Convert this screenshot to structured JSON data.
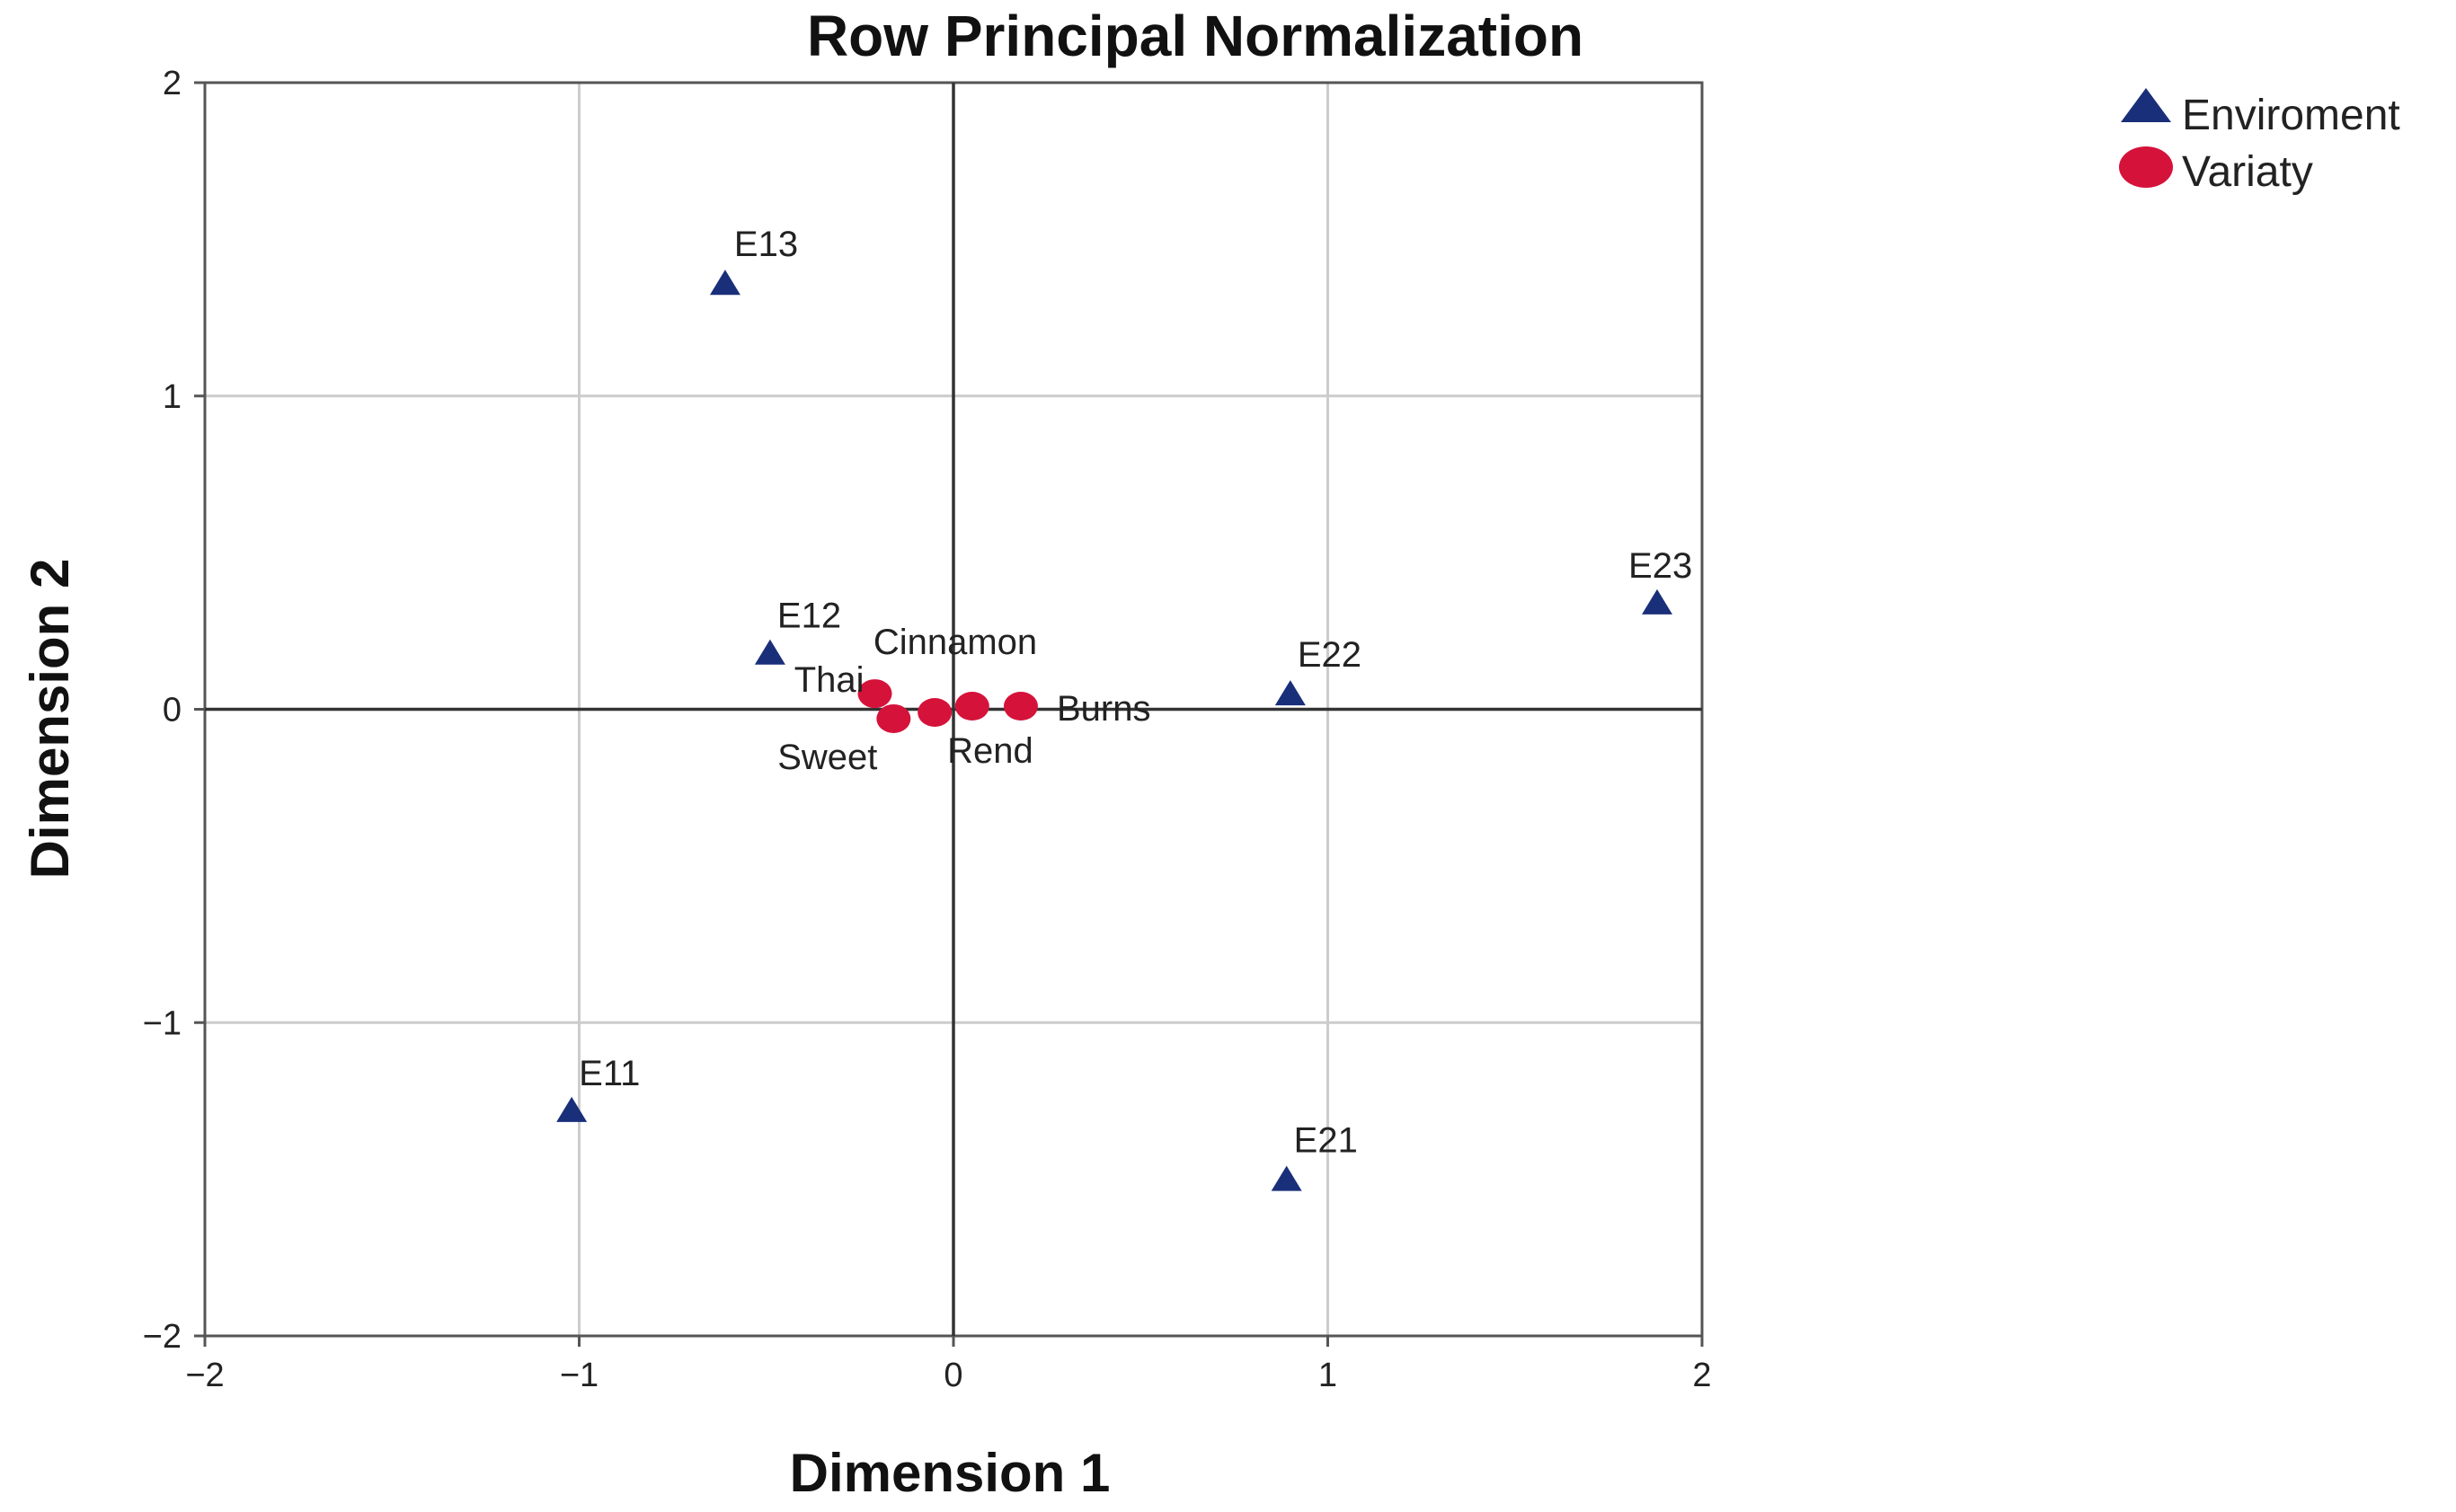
{
  "chart_data": {
    "type": "scatter",
    "title": "Row Principal Normalization",
    "xlabel": "Dimension 1",
    "ylabel": "Dimension 2",
    "xlim": [
      -2,
      2
    ],
    "ylim": [
      -2,
      2
    ],
    "x_ticks": [
      "−2",
      "−1",
      "0",
      "1",
      "2"
    ],
    "y_ticks": [
      "2",
      "1",
      "0",
      "−1",
      "−2"
    ],
    "grid": true,
    "legend_position": "top-right",
    "series": [
      {
        "name": "Enviroment",
        "marker": "triangle",
        "color": "#1a2f7a",
        "points": [
          {
            "label": "E13",
            "x": -0.61,
            "y": 1.36
          },
          {
            "label": "E12",
            "x": -0.49,
            "y": 0.18
          },
          {
            "label": "E11",
            "x": -1.02,
            "y": -1.28
          },
          {
            "label": "E22",
            "x": 0.9,
            "y": 0.05
          },
          {
            "label": "E21",
            "x": 0.89,
            "y": -1.5
          },
          {
            "label": "E23",
            "x": 1.88,
            "y": 0.34
          }
        ]
      },
      {
        "name": "Variaty",
        "marker": "circle",
        "color": "#d5123a",
        "points": [
          {
            "label": "Thai",
            "x": -0.21,
            "y": 0.05
          },
          {
            "label": "Sweet",
            "x": -0.16,
            "y": -0.03
          },
          {
            "label": "Rend",
            "x": -0.05,
            "y": -0.01
          },
          {
            "label": "Cinnamon",
            "x": 0.05,
            "y": 0.01
          },
          {
            "label": "Burns",
            "x": 0.18,
            "y": 0.01
          }
        ]
      }
    ]
  }
}
